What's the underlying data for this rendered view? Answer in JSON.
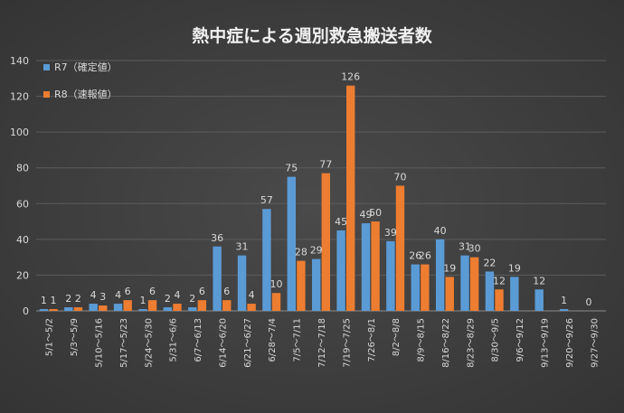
{
  "chart_data": {
    "type": "bar",
    "title": "熱中症による週別救急搬送者数",
    "xlabel": "",
    "ylabel": "",
    "ylim": [
      0,
      140
    ],
    "yticks": [
      0,
      20,
      40,
      60,
      80,
      100,
      120,
      140
    ],
    "grid": true,
    "legend_position": "top-left",
    "categories": [
      "5/1～5/2",
      "5/3～5/9",
      "5/10～5/16",
      "5/17～5/23",
      "5/24～5/30",
      "5/31～6/6",
      "6/7～6/13",
      "6/14～6/20",
      "6/21～6/27",
      "6/28～7/4",
      "7/5～7/11",
      "7/12～7/18",
      "7/19～7/25",
      "7/26～8/1",
      "8/2～8/8",
      "8/9～8/15",
      "8/16～8/22",
      "8/23～8/29",
      "8/30～9/5",
      "9/6～9/12",
      "9/13～9/19",
      "9/20～9/26",
      "9/27～9/30"
    ],
    "series": [
      {
        "name": "R7（確定値）",
        "color": "#5b9bd5",
        "values": [
          1,
          2,
          4,
          4,
          1,
          2,
          2,
          36,
          31,
          57,
          75,
          29,
          45,
          49,
          39,
          26,
          40,
          31,
          22,
          19,
          12,
          1,
          0
        ]
      },
      {
        "name": "R8（速報値）",
        "color": "#ed7d31",
        "values": [
          1,
          2,
          3,
          6,
          6,
          4,
          6,
          6,
          4,
          10,
          28,
          77,
          126,
          50,
          70,
          26,
          19,
          30,
          12,
          null,
          null,
          null,
          null
        ]
      }
    ]
  }
}
